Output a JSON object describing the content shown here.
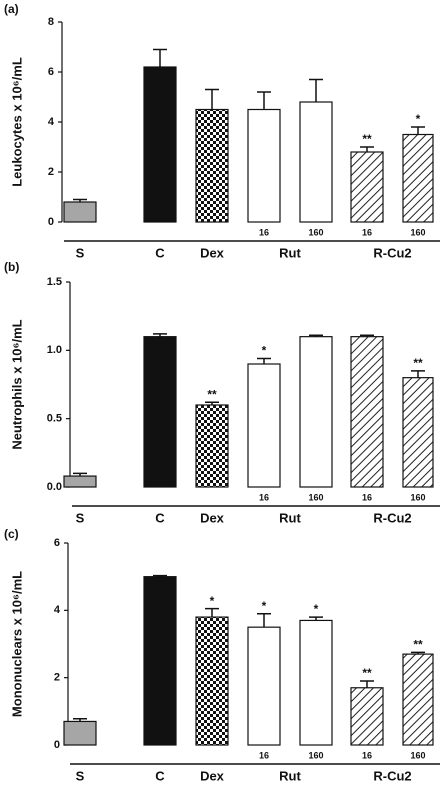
{
  "chart_data": [
    {
      "type": "bar",
      "panel_label": "(a)",
      "ylabel": "Leukocytes x 10⁶/mL",
      "categories": [
        null,
        null,
        null,
        "16",
        "160",
        "16",
        "160"
      ],
      "values": [
        0.8,
        6.2,
        4.5,
        4.5,
        4.8,
        2.8,
        3.5
      ],
      "errors": [
        0.1,
        0.7,
        0.8,
        0.7,
        0.9,
        0.2,
        0.3
      ],
      "annotations": [
        null,
        null,
        null,
        null,
        null,
        "**",
        "*"
      ],
      "colors": [
        "#a6a6a6",
        "#111111",
        "#111111",
        "#ffffff",
        "#ffffff",
        "#222222",
        "#222222"
      ],
      "patterns": [
        "solid",
        "solid",
        "checker",
        "solid",
        "solid",
        "hatch",
        "hatch"
      ],
      "groups": [
        {
          "label": "S",
          "bars": 1
        },
        {
          "label": "C",
          "bars": 1
        },
        {
          "label": "Dex",
          "bars": 1
        },
        {
          "label": "Rut",
          "bars": 2
        },
        {
          "label": "R-Cu2",
          "bars": 2
        }
      ],
      "ylim": [
        0,
        8
      ],
      "yticks": [
        0,
        2,
        4,
        6,
        8
      ]
    },
    {
      "type": "bar",
      "panel_label": "(b)",
      "ylabel": "Neutrophils x 10⁶/mL",
      "categories": [
        null,
        null,
        null,
        "16",
        "160",
        "16",
        "160"
      ],
      "values": [
        0.08,
        1.1,
        0.6,
        0.9,
        1.1,
        1.1,
        0.8
      ],
      "errors": [
        0.02,
        0.02,
        0.02,
        0.04,
        0.01,
        0.01,
        0.05
      ],
      "annotations": [
        null,
        null,
        "**",
        "*",
        null,
        null,
        "**"
      ],
      "colors": [
        "#a6a6a6",
        "#111111",
        "#111111",
        "#ffffff",
        "#ffffff",
        "#222222",
        "#222222"
      ],
      "patterns": [
        "solid",
        "solid",
        "checker",
        "solid",
        "solid",
        "hatch",
        "hatch"
      ],
      "groups": [
        {
          "label": "S",
          "bars": 1
        },
        {
          "label": "C",
          "bars": 1
        },
        {
          "label": "Dex",
          "bars": 1
        },
        {
          "label": "Rut",
          "bars": 2
        },
        {
          "label": "R-Cu2",
          "bars": 2
        }
      ],
      "ylim": [
        0,
        1.5
      ],
      "yticks": [
        {
          "value": 0,
          "label": "0.0"
        },
        0.5,
        {
          "value": 1,
          "label": "1.0"
        },
        1.5
      ]
    },
    {
      "type": "bar",
      "panel_label": "(c)",
      "ylabel": "Mononuclears x 10⁶/mL",
      "categories": [
        null,
        null,
        null,
        "16",
        "160",
        "16",
        "160"
      ],
      "values": [
        0.7,
        5.0,
        3.8,
        3.5,
        3.7,
        1.7,
        2.7
      ],
      "errors": [
        0.08,
        0.03,
        0.25,
        0.4,
        0.1,
        0.2,
        0.05
      ],
      "annotations": [
        null,
        null,
        "*",
        "*",
        "*",
        "**",
        "**"
      ],
      "colors": [
        "#a6a6a6",
        "#111111",
        "#111111",
        "#ffffff",
        "#ffffff",
        "#222222",
        "#222222"
      ],
      "patterns": [
        "solid",
        "solid",
        "checker",
        "solid",
        "solid",
        "hatch",
        "hatch"
      ],
      "groups": [
        {
          "label": "S",
          "bars": 1
        },
        {
          "label": "C",
          "bars": 1
        },
        {
          "label": "Dex",
          "bars": 1
        },
        {
          "label": "Rut",
          "bars": 2
        },
        {
          "label": "R-Cu2",
          "bars": 2
        }
      ],
      "ylim": [
        0,
        6
      ],
      "yticks": [
        0,
        2,
        4,
        6
      ]
    }
  ]
}
